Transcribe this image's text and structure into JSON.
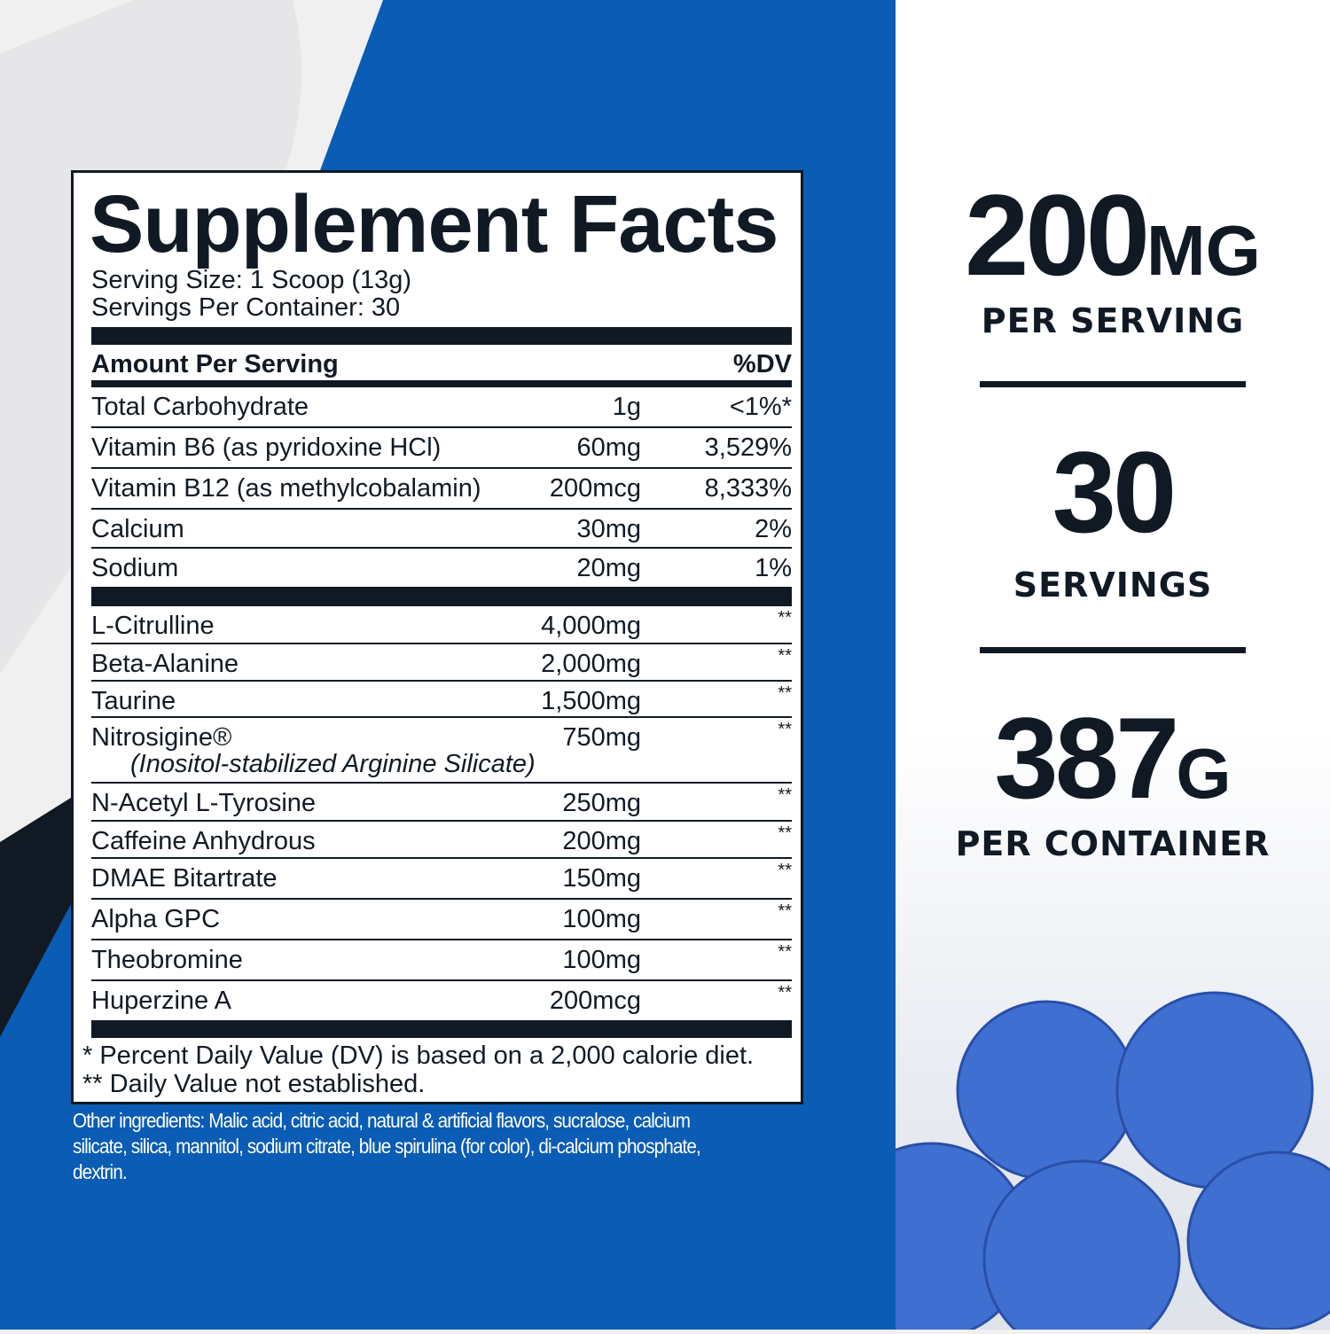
{
  "colors": {
    "blue": "#0a5cb5",
    "navy": "#111a24",
    "berry": "#3f6fd0"
  },
  "facts": {
    "title": "Supplement Facts",
    "serving_size": "Serving Size: 1 Scoop (13g)",
    "servings_per_container": "Servings Per Container: 30",
    "amount_header": "Amount Per Serving",
    "dv_header": "%DV",
    "nutrients": [
      {
        "name": "Total Carbohydrate",
        "amount": "1g",
        "dv": "<1%*"
      },
      {
        "name": "Vitamin B6 (as pyridoxine HCl)",
        "amount": "60mg",
        "dv": "3,529%"
      },
      {
        "name": "Vitamin B12 (as methylcobalamin)",
        "amount": "200mcg",
        "dv": "8,333%"
      },
      {
        "name": "Calcium",
        "amount": "30mg",
        "dv": "2%"
      },
      {
        "name": "Sodium",
        "amount": "20mg",
        "dv": "1%"
      }
    ],
    "ingredients": [
      {
        "name": "L-Citrulline",
        "amount": "4,000mg",
        "dv": "**"
      },
      {
        "name": "Beta-Alanine",
        "amount": "2,000mg",
        "dv": "**"
      },
      {
        "name": "Taurine",
        "amount": "1,500mg",
        "dv": "**"
      },
      {
        "name": "Nitrosigine®",
        "sub": "(Inositol-stabilized Arginine Silicate)",
        "amount": "750mg",
        "dv": "**"
      },
      {
        "name": "N-Acetyl L-Tyrosine",
        "amount": "250mg",
        "dv": "**"
      },
      {
        "name": "Caffeine Anhydrous",
        "amount": "200mg",
        "dv": "**"
      },
      {
        "name": "DMAE Bitartrate",
        "amount": "150mg",
        "dv": "**"
      },
      {
        "name": "Alpha GPC",
        "amount": "100mg",
        "dv": "**"
      },
      {
        "name": "Theobromine",
        "amount": "100mg",
        "dv": "**"
      },
      {
        "name": "Huperzine A",
        "amount": "200mcg",
        "dv": "**"
      }
    ],
    "footnote1": "* Percent Daily Value (DV) is based on a 2,000 calorie diet.",
    "footnote2": "** Daily Value not established."
  },
  "other_ingredients": "Other ingredients: Malic acid, citric acid, natural & artificial flavors, sucralose, calcium silicate, silica, mannitol, sodium citrate, blue spirulina (for color), di-calcium phosphate, dextrin.",
  "stats": [
    {
      "value": "200",
      "unit": "MG",
      "label": "PER SERVING"
    },
    {
      "value": "30",
      "unit": "",
      "label": "SERVINGS"
    },
    {
      "value": "387",
      "unit": "G",
      "label": "PER CONTAINER"
    }
  ]
}
